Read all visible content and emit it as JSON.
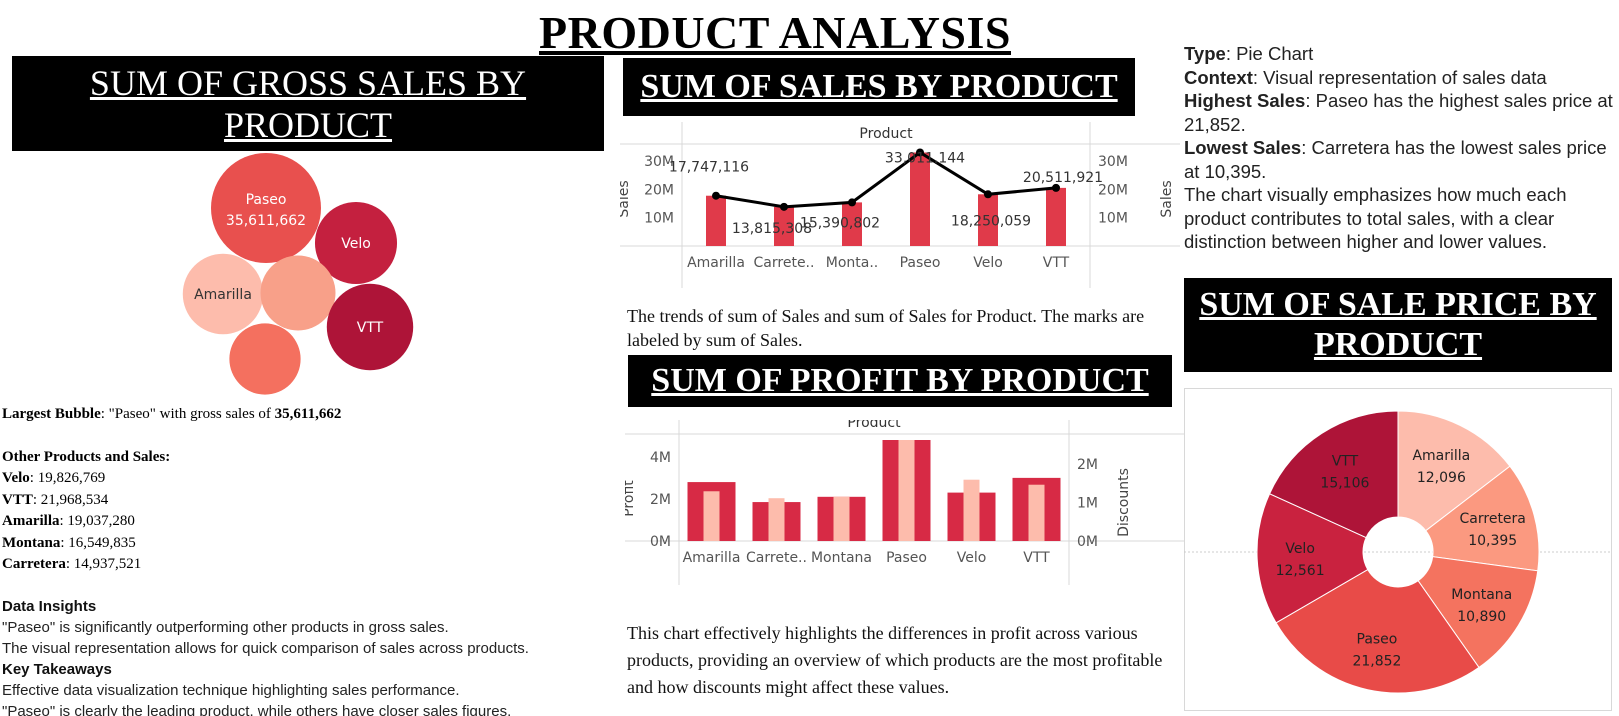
{
  "dashboard": {
    "title": "PRODUCT ANALYSIS"
  },
  "gross_panel": {
    "header": "SUM OF GROSS SALES BY PRODUCT",
    "largest_label": "Largest Bubble",
    "largest_text": ": \"Paseo\" with gross sales of ",
    "largest_value": "35,611,662",
    "other_heading": "Other Products and Sales:",
    "others": [
      {
        "name": "Velo",
        "value": ": 19,826,769"
      },
      {
        "name": "VTT",
        "value": ": 21,968,534"
      },
      {
        "name": "Amarilla",
        "value": ": 19,037,280"
      },
      {
        "name": "Montana",
        "value": ": 16,549,835"
      },
      {
        "name": "Carretera",
        "value": ": 14,937,521"
      }
    ],
    "insights_heading": "Data Insights",
    "insights": [
      "\"Paseo\" is significantly outperforming other products in gross sales.",
      "The visual representation allows for quick comparison of sales across products."
    ],
    "takeaways_heading": "Key Takeaways",
    "takeaways": [
      "Effective data visualization technique highlighting sales performance.",
      "\"Paseo\" is clearly the leading product, while others have closer sales figures."
    ]
  },
  "sales_panel": {
    "header": "SUM OF SALES BY PRODUCT",
    "description": "The trends of sum of Sales and sum of Sales for Product. The marks are labeled by sum of Sales."
  },
  "profit_panel": {
    "header": "SUM OF PROFIT BY PRODUCT",
    "description": "This chart effectively highlights the differences in profit across various products, providing an overview of which products are the most profitable and how discounts might affect these values."
  },
  "price_panel": {
    "header": "SUM OF SALE PRICE BY PRODUCT",
    "type_label": "Type",
    "type_value": ": Pie Chart",
    "context_label": "Context",
    "context_value": ": Visual representation of sales data",
    "highest_label": "Highest Sales",
    "highest_value": ": Paseo has the highest sales price at 21,852.",
    "lowest_label": "Lowest Sales",
    "lowest_value": ": Carretera has the lowest sales price at 10,395.",
    "summary": "The chart visually emphasizes how much each product contributes to total sales, with a clear distinction between higher and lower values."
  },
  "chart_data": [
    {
      "id": "gross_bubble",
      "type": "bubble",
      "title": "SUM OF GROSS SALES BY PRODUCT",
      "points": [
        {
          "label": "Paseo",
          "value": 35611662,
          "value_label": "35,611,662",
          "color": "#e8504e",
          "show_label": true
        },
        {
          "label": "Velo",
          "value": 19826769,
          "color": "#c4203f",
          "show_label": true
        },
        {
          "label": "Amarilla",
          "value": 19037280,
          "color": "#fdbcac",
          "show_label": true
        },
        {
          "label": "Montana",
          "value": 16549835,
          "color": "#f8a089",
          "show_label": false
        },
        {
          "label": "VTT",
          "value": 21968534,
          "color": "#ae1438",
          "show_label": true
        },
        {
          "label": "Carretera",
          "value": 14937521,
          "color": "#f4705f",
          "show_label": false
        }
      ]
    },
    {
      "id": "sales_combo",
      "type": "bar",
      "header": "Product",
      "ylabel": "Sales",
      "ylabel_right": "Sales",
      "y_ticks": [
        "10M",
        "20M",
        "30M"
      ],
      "y_tick_values": [
        10000000,
        20000000,
        30000000
      ],
      "ylim": [
        0,
        36000000
      ],
      "categories": [
        "Amarilla",
        "Carrete..",
        "Monta..",
        "Paseo",
        "Velo",
        "VTT"
      ],
      "series": [
        {
          "kind": "bar",
          "color": "#e03a4a",
          "values": [
            17747116,
            13815308,
            15390802,
            33011144,
            18250059,
            20511921
          ]
        },
        {
          "kind": "line",
          "color": "#000000",
          "values": [
            17747116,
            13815308,
            15390802,
            33011144,
            18250059,
            20511921
          ]
        }
      ],
      "data_labels": [
        "17,747,116",
        "13,815,308",
        "15,390,802",
        "33,011,144",
        "18,250,059",
        "20,511,921"
      ]
    },
    {
      "id": "profit_dual_bar",
      "type": "bar",
      "header": "Product",
      "ylabel": "Profit",
      "ylabel_right": "Discounts",
      "y_ticks": [
        "0M",
        "2M",
        "4M"
      ],
      "y_tick_values": [
        0,
        2000000,
        4000000
      ],
      "ylim": [
        0,
        4800000
      ],
      "y2_ticks": [
        "0M",
        "1M",
        "2M"
      ],
      "y2_tick_values": [
        0,
        1000000,
        2000000
      ],
      "y2lim": [
        0,
        2620000
      ],
      "categories": [
        "Amarilla",
        "Carrete..",
        "Montana",
        "Paseo",
        "Velo",
        "VTT"
      ],
      "series": [
        {
          "kind": "bar",
          "axis": "left",
          "color": "#d72a45",
          "values": [
            2800000,
            1850000,
            2100000,
            4800000,
            2300000,
            3000000
          ]
        },
        {
          "kind": "bar",
          "axis": "right",
          "color": "#fdbcac",
          "values": [
            1290000,
            1110000,
            1150000,
            2620000,
            1590000,
            1460000
          ]
        }
      ]
    },
    {
      "id": "price_donut",
      "type": "pie",
      "slices": [
        {
          "label": "Amarilla",
          "value": 12096,
          "value_label": "12,096",
          "color": "#fdbcac"
        },
        {
          "label": "Carretera",
          "value": 10395,
          "value_label": "10,395",
          "color": "#fb9980"
        },
        {
          "label": "Montana",
          "value": 10890,
          "value_label": "10,890",
          "color": "#f4735f"
        },
        {
          "label": "Paseo",
          "value": 21852,
          "value_label": "21,852",
          "color": "#e84b48"
        },
        {
          "label": "Velo",
          "value": 12561,
          "value_label": "12,561",
          "color": "#c9223f"
        },
        {
          "label": "VTT",
          "value": 15106,
          "value_label": "15,106",
          "color": "#ae1438"
        }
      ]
    }
  ]
}
